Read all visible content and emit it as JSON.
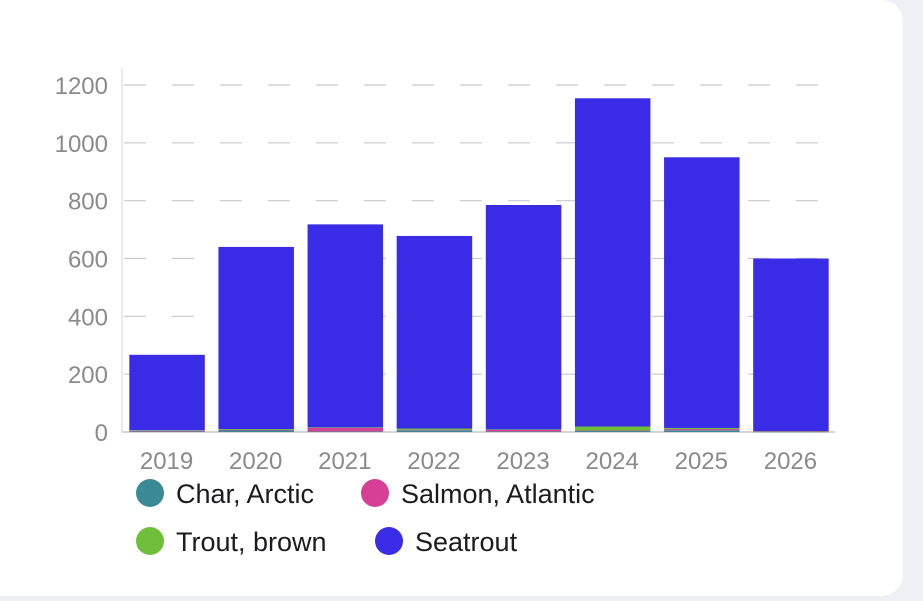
{
  "chart_data": {
    "type": "bar",
    "stacked": true,
    "categories": [
      "2019",
      "2020",
      "2021",
      "2022",
      "2023",
      "2024",
      "2025",
      "2026"
    ],
    "series": [
      {
        "name": "Char, Arctic",
        "color": "#3a8a96",
        "values": [
          2,
          6,
          2,
          6,
          2,
          4,
          6,
          1
        ]
      },
      {
        "name": "Salmon, Atlantic",
        "color": "#d63f95",
        "values": [
          2,
          1,
          12,
          2,
          6,
          1,
          4,
          1
        ]
      },
      {
        "name": "Trout, brown",
        "color": "#6fbf3a",
        "values": [
          2,
          3,
          2,
          4,
          1,
          14,
          4,
          1
        ]
      },
      {
        "name": "Seatrout",
        "color": "#3a2be6",
        "values": [
          261,
          630,
          702,
          666,
          776,
          1135,
          936,
          597
        ]
      }
    ],
    "yticks": [
      0,
      200,
      400,
      600,
      800,
      1000,
      1200
    ],
    "ylim": [
      0,
      1200
    ],
    "grid": "dashed-horizontal",
    "legend_position": "bottom",
    "legend": [
      "Char, Arctic",
      "Salmon, Atlantic",
      "Trout, brown",
      "Seatrout"
    ]
  }
}
